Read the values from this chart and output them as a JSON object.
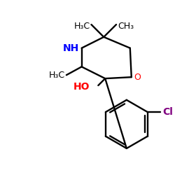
{
  "background_color": "#ffffff",
  "bond_color": "#000000",
  "O_color": "#ff0000",
  "N_color": "#0000ff",
  "Cl_color": "#800080",
  "HO_label": "HO",
  "O_label": "O",
  "NH_label": "NH",
  "Cl_label": "Cl",
  "H3C_left_label": "H₃C",
  "CH3_bottom_left": "H₃C",
  "CH3_bottom_right": "CH₃",
  "figsize": [
    2.5,
    2.5
  ],
  "dpi": 100
}
